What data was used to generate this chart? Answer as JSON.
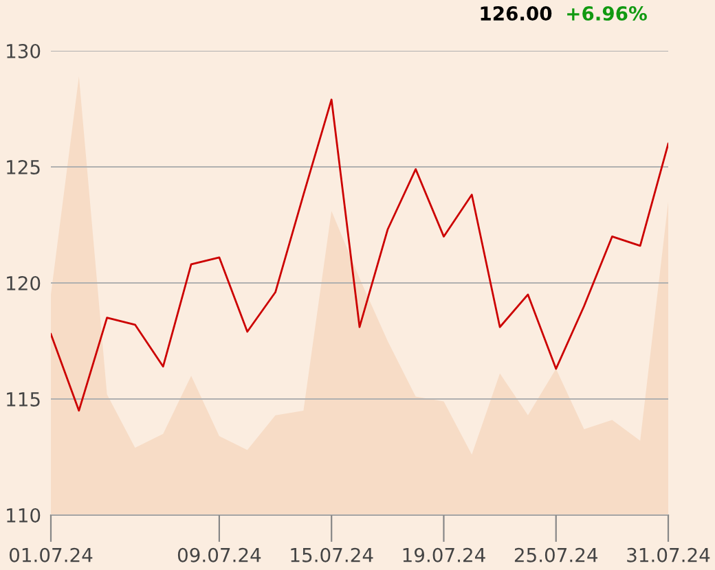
{
  "chart_data": {
    "type": "line",
    "categories": [
      "01.07.24",
      null,
      null,
      null,
      null,
      null,
      "09.07.24",
      null,
      null,
      null,
      "15.07.24",
      null,
      null,
      null,
      "19.07.24",
      null,
      null,
      null,
      "25.07.24",
      null,
      null,
      null,
      "31.07.24"
    ],
    "series": [
      {
        "type": "area",
        "color": "#f7dcc6",
        "values": [
          119.5,
          128.9,
          115.2,
          112.9,
          113.5,
          116.0,
          113.4,
          112.8,
          114.3,
          114.5,
          123.1,
          120.2,
          117.5,
          115.1,
          114.9,
          112.6,
          116.1,
          114.3,
          116.3,
          113.7,
          114.1,
          113.2,
          123.5
        ]
      },
      {
        "color": "#cc0000",
        "values": [
          117.8,
          114.5,
          118.5,
          118.2,
          116.4,
          120.8,
          121.1,
          117.9,
          119.6,
          123.8,
          127.9,
          118.1,
          122.3,
          124.9,
          122.0,
          123.8,
          118.1,
          119.5,
          116.3,
          119.0,
          122.0,
          121.6,
          126.0
        ]
      }
    ],
    "ylim": [
      110,
      130
    ],
    "yticks": [
      110,
      115,
      120,
      125,
      130
    ],
    "grid": "y",
    "annotations": [
      "126.00",
      "+6.96%"
    ]
  }
}
